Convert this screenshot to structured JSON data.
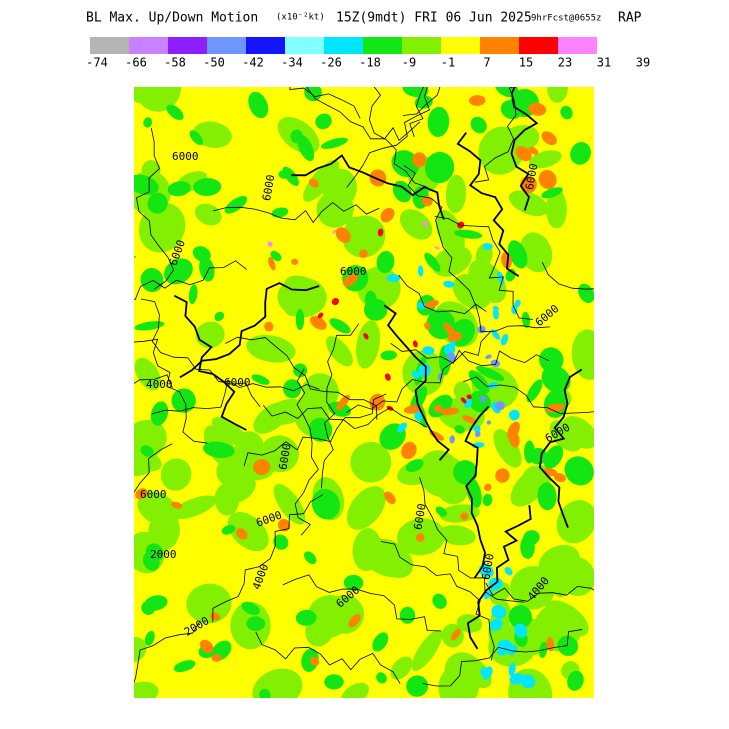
{
  "header": {
    "title_parts": [
      "BL Max. Up/Down Motion",
      "(x10⁻²kt)",
      "15Z(9mdt) FRI 06 Jun 2025",
      "9hrFcst@0655z",
      "RAP"
    ]
  },
  "colorbar": {
    "colors": [
      "#b4b4b4",
      "#c882ff",
      "#8c1eff",
      "#6e96ff",
      "#1414ff",
      "#82ffff",
      "#00e6ff",
      "#14e614",
      "#82f000",
      "#ffff00",
      "#ff8200",
      "#ff0000",
      "#ff82ff"
    ],
    "labels": [
      -74,
      -66,
      -58,
      -50,
      -42,
      -34,
      -26,
      -18,
      -9,
      -1,
      7,
      15,
      23,
      31,
      39
    ]
  },
  "map": {
    "contour_labels": [
      "6000",
      "6000",
      "6000",
      "6000",
      "4000",
      "6000",
      "6000",
      "2000",
      "6000",
      "4000",
      "2000",
      "6000",
      "6000",
      "6000",
      "6000",
      "6000",
      "4000",
      "6000",
      "6000"
    ]
  }
}
